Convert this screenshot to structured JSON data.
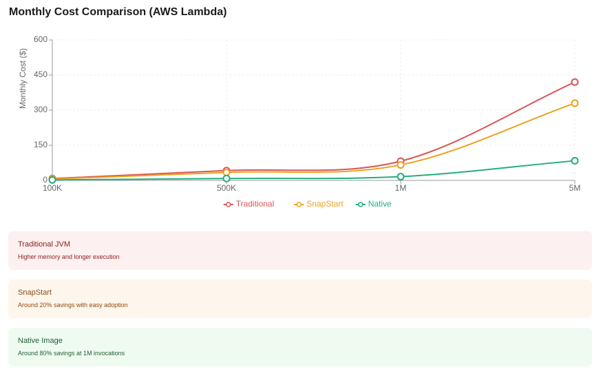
{
  "chart_data": {
    "type": "line",
    "title": "Monthly Cost Comparison (AWS Lambda)",
    "y_label": "Monthly Cost ($)",
    "categories": [
      "100K",
      "500K",
      "1M",
      "5M"
    ],
    "series": [
      {
        "name": "Traditional",
        "color": "#dc5454",
        "values": [
          8,
          42,
          82,
          420
        ]
      },
      {
        "name": "SnapStart",
        "color": "#eba21e",
        "values": [
          6,
          34,
          66,
          330
        ]
      },
      {
        "name": "Native",
        "color": "#22ad7e",
        "values": [
          2,
          8,
          16,
          84
        ]
      }
    ],
    "ylim": [
      0,
      600
    ],
    "yticks": [
      0,
      150,
      300,
      450,
      600
    ],
    "grid": true,
    "legend": "bottom"
  },
  "cards": [
    {
      "title": "Traditional JVM",
      "text": "Higher memory and longer execution"
    },
    {
      "title": "SnapStart",
      "text": "Around 20% savings with easy adoption"
    },
    {
      "title": "Native Image",
      "text": "Around 80% savings at 1M invocations"
    }
  ]
}
